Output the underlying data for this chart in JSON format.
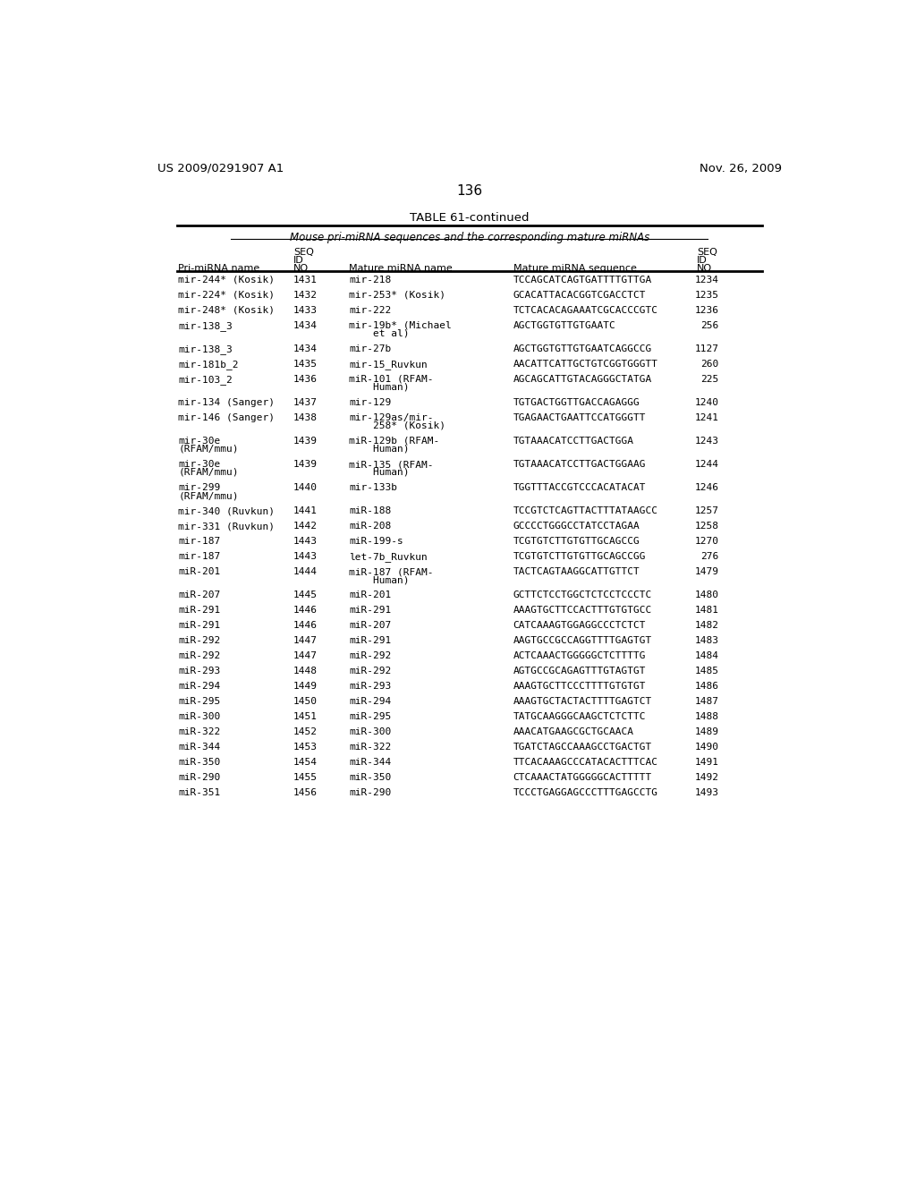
{
  "header_left": "US 2009/0291907 A1",
  "header_right": "Nov. 26, 2009",
  "page_number": "136",
  "table_title": "TABLE 61-continued",
  "table_subtitle": "Mouse pri-miRNA sequences and the corresponding mature miRNAs",
  "rows": [
    [
      "mir-244* (Kosik)",
      "1431",
      "mir-218",
      "TCCAGCATCAGTGATTTTGTTGA",
      "1234"
    ],
    [
      "mir-224* (Kosik)",
      "1432",
      "mir-253* (Kosik)",
      "GCACATTACACGGTCGACCTCT",
      "1235"
    ],
    [
      "mir-248* (Kosik)",
      "1433",
      "mir-222",
      "TCTCACACAGAAATCGCACCCGTC",
      "1236"
    ],
    [
      "mir-138_3",
      "1434",
      "mir-19b* (Michael\n    et al)",
      "AGCTGGTGTTGTGAATC",
      "256"
    ],
    [
      "mir-138_3",
      "1434",
      "mir-27b",
      "AGCTGGTGTTGTGAATCAGGCCG",
      "1127"
    ],
    [
      "mir-181b_2",
      "1435",
      "mir-15_Ruvkun",
      "AACATTCATTGCTGTCGGTGGGTT",
      "260"
    ],
    [
      "mir-103_2",
      "1436",
      "miR-101 (RFAM-\n    Human)",
      "AGCAGCATTGTACAGGGCTATGA",
      "225"
    ],
    [
      "mir-134 (Sanger)",
      "1437",
      "mir-129",
      "TGTGACTGGTTGACCAGAGGG",
      "1240"
    ],
    [
      "mir-146 (Sanger)",
      "1438",
      "mir-129as/mir-\n    258* (Kosik)",
      "TGAGAACTGAATTCCATGGGTT",
      "1241"
    ],
    [
      "mir-30e\n(RFAM/mmu)",
      "1439",
      "miR-129b (RFAM-\n    Human)",
      "TGTAAACATCCTTGACTGGA",
      "1243"
    ],
    [
      "mir-30e\n(RFAM/mmu)",
      "1439",
      "miR-135 (RFAM-\n    Human)",
      "TGTAAACATCCTTGACTGGAAG",
      "1244"
    ],
    [
      "mir-299\n(RFAM/mmu)",
      "1440",
      "mir-133b",
      "TGGTTTACCGTCCCACATACAT",
      "1246"
    ],
    [
      "mir-340 (Ruvkun)",
      "1441",
      "miR-188",
      "TCCGTCTCAGTTACTTTATAAGCC",
      "1257"
    ],
    [
      "mir-331 (Ruvkun)",
      "1442",
      "miR-208",
      "GCCCCTGGGCCTATCCTAGAA",
      "1258"
    ],
    [
      "mir-187",
      "1443",
      "miR-199-s",
      "TCGTGTCTTGTGTTGCAGCCG",
      "1270"
    ],
    [
      "mir-187",
      "1443",
      "let-7b_Ruvkun",
      "TCGTGTCTTGTGTTGCAGCCGG",
      "276"
    ],
    [
      "miR-201",
      "1444",
      "miR-187 (RFAM-\n    Human)",
      "TACTCAGTAAGGCATTGTTCT",
      "1479"
    ],
    [
      "miR-207",
      "1445",
      "miR-201",
      "GCTTCTCCTGGCTCTCCTCCCTC",
      "1480"
    ],
    [
      "miR-291",
      "1446",
      "miR-291",
      "AAAGTGCTTCCACTTTGTGTGCC",
      "1481"
    ],
    [
      "miR-291",
      "1446",
      "miR-207",
      "CATCAAAGTGGAGGCCCTCTCT",
      "1482"
    ],
    [
      "miR-292",
      "1447",
      "miR-291",
      "AAGTGCCGCCAGGTTTTGAGTGT",
      "1483"
    ],
    [
      "miR-292",
      "1447",
      "miR-292",
      "ACTCAAACTGGGGGCTCTTTTG",
      "1484"
    ],
    [
      "miR-293",
      "1448",
      "miR-292",
      "AGTGCCGCAGAGTTTGTAGTGT",
      "1485"
    ],
    [
      "miR-294",
      "1449",
      "miR-293",
      "AAAGTGCTTCCCTTTTGTGTGT",
      "1486"
    ],
    [
      "miR-295",
      "1450",
      "miR-294",
      "AAAGTGCTACTACTTTTGAGTCT",
      "1487"
    ],
    [
      "miR-300",
      "1451",
      "miR-295",
      "TATGCAAGGGCAAGCTCTCTTC",
      "1488"
    ],
    [
      "miR-322",
      "1452",
      "miR-300",
      "AAACATGAAGCGCTGCAACA",
      "1489"
    ],
    [
      "miR-344",
      "1453",
      "miR-322",
      "TGATCTAGCCAAAGCCTGACTGT",
      "1490"
    ],
    [
      "miR-350",
      "1454",
      "miR-344",
      "TTCACAAAGCCCATACACTTTCAC",
      "1491"
    ],
    [
      "miR-290",
      "1455",
      "miR-350",
      "CTCAAACTATGGGGGCACTTTTT",
      "1492"
    ],
    [
      "miR-351",
      "1456",
      "miR-290",
      "TCCCTGAGGAGCCCTTTGAGCCTG",
      "1493"
    ]
  ],
  "bg_color": "#ffffff",
  "text_color": "#000000"
}
